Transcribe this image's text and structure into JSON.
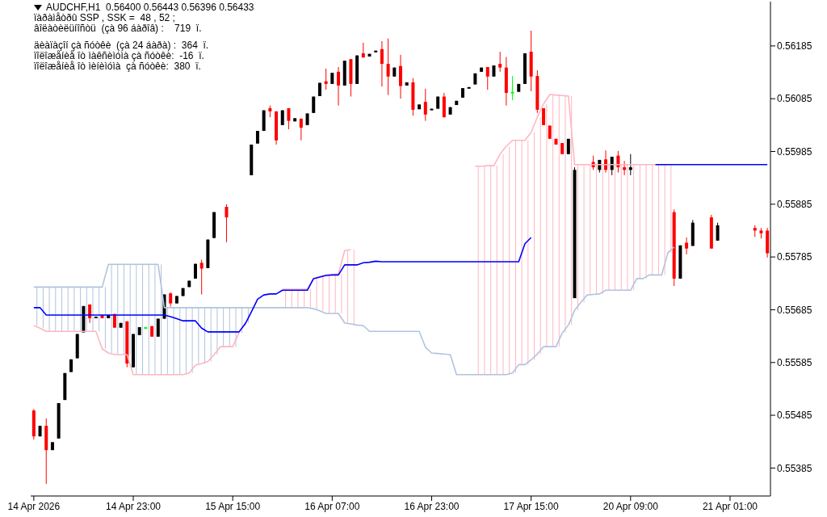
{
  "chart_data": {
    "type": "candlestick",
    "title": "AUDCHF,H1  0.56400 0.56443 0.56396 0.56433",
    "annotations": [
      "ïàðàìåòðû SSP , SSK =  48 , 52 ;",
      "âîëàòèëüíîñòü  (çà 96 áàðîâ) :    719  ï.",
      "äèàïàçîí çà ñóòêè  (çà 24 áàðà) :  364  ï.",
      "ïîëîæåíèå îò ìàêñèìóìà çà ñóòêè:  -16  ï.",
      "ïîëîæåíèå îò ìèíèìóìà  çà ñóòêè:  380  ï."
    ],
    "categories": [
      "14 Apr 2026",
      null,
      null,
      null,
      null,
      null,
      null,
      null,
      null,
      null,
      null,
      null,
      null,
      null,
      null,
      null,
      "14 Apr 23:00",
      null,
      null,
      null,
      null,
      null,
      null,
      null,
      null,
      null,
      null,
      null,
      null,
      null,
      null,
      null,
      "15 Apr 15:00",
      null,
      null,
      null,
      null,
      null,
      null,
      null,
      null,
      null,
      null,
      null,
      null,
      null,
      null,
      null,
      "16 Apr 07:00",
      null,
      null,
      null,
      null,
      null,
      null,
      null,
      null,
      null,
      null,
      null,
      null,
      null,
      null,
      null,
      "16 Apr 23:00",
      null,
      null,
      null,
      null,
      null,
      null,
      null,
      null,
      null,
      null,
      null,
      null,
      null,
      null,
      null,
      "17 Apr 15:00",
      null,
      null,
      null,
      null,
      null,
      null,
      null,
      null,
      null,
      null,
      null,
      null,
      null,
      null,
      null,
      "20 Apr 09:00",
      null,
      null,
      null,
      null,
      null,
      null,
      null,
      null,
      null,
      null,
      null,
      null,
      null,
      null,
      null,
      "21 Apr 01:00",
      null,
      null,
      null,
      null,
      null,
      null
    ],
    "ohlc": [
      [
        0.55494,
        0.55497,
        0.55439,
        0.55445
      ],
      [
        0.55445,
        0.55465,
        0.55445,
        0.55465
      ],
      [
        0.55465,
        0.55479,
        0.55355,
        0.55419
      ],
      [
        0.55419,
        0.55434,
        0.55419,
        0.55434
      ],
      [
        0.55441,
        0.55508,
        0.55441,
        0.55508
      ],
      [
        0.55514,
        0.55565,
        0.55514,
        0.55565
      ],
      [
        0.55567,
        0.55591,
        0.55567,
        0.55591
      ],
      [
        0.55593,
        0.55639,
        0.55593,
        0.55639
      ],
      [
        0.55642,
        0.55692,
        0.55642,
        0.55692
      ],
      [
        0.55695,
        0.55695,
        0.5566,
        0.55669
      ],
      [
        0.5567,
        0.55672,
        0.5567,
        0.55672
      ],
      [
        0.55675,
        0.55675,
        0.55669,
        0.55669
      ],
      [
        0.55669,
        0.55675,
        0.55669,
        0.55675
      ],
      [
        0.55677,
        0.55677,
        0.55651,
        0.55651
      ],
      [
        0.55651,
        0.5566,
        0.55651,
        0.5566
      ],
      [
        0.55663,
        0.55663,
        0.55576,
        0.55583
      ],
      [
        0.55576,
        0.55639,
        0.55576,
        0.55639
      ],
      [
        0.55637,
        0.55652,
        0.55637,
        0.55652
      ],
      [
        0.55652,
        0.55652,
        0.55652,
        0.55652
      ],
      [
        0.55654,
        0.55654,
        0.55634,
        0.55634
      ],
      [
        0.55634,
        0.55668,
        0.55634,
        0.55668
      ],
      [
        0.55668,
        0.55714,
        0.55668,
        0.55714
      ],
      [
        0.55716,
        0.55718,
        0.55691,
        0.55697
      ],
      [
        0.55697,
        0.55711,
        0.55697,
        0.55711
      ],
      [
        0.55711,
        0.55726,
        0.55711,
        0.55726
      ],
      [
        0.55728,
        0.5574,
        0.55728,
        0.5574
      ],
      [
        0.55744,
        0.55772,
        0.55744,
        0.55772
      ],
      [
        0.55774,
        0.5578,
        0.55714,
        0.55763
      ],
      [
        0.55764,
        0.55818,
        0.55764,
        0.55818
      ],
      [
        0.55821,
        0.5587,
        0.55821,
        0.5587
      ],
      null,
      [
        0.5588,
        0.55885,
        0.55813,
        0.5586
      ],
      null,
      null,
      null,
      [
        0.5594,
        0.55998,
        0.5594,
        0.55998
      ],
      [
        0.56,
        0.56024,
        0.56,
        0.56024
      ],
      [
        0.56024,
        0.56063,
        0.56024,
        0.56063
      ],
      [
        0.56067,
        0.56072,
        0.5605,
        0.56061
      ],
      [
        0.56061,
        0.56061,
        0.55998,
        0.56006
      ],
      [
        0.56035,
        0.56063,
        0.56035,
        0.56063
      ],
      [
        0.56067,
        0.56067,
        0.56027,
        0.56043
      ],
      [
        0.56042,
        0.56048,
        0.56042,
        0.56048
      ],
      [
        0.56047,
        0.56048,
        0.56006,
        0.5603
      ],
      [
        0.56035,
        0.56057,
        0.56035,
        0.56057
      ],
      [
        0.56058,
        0.56089,
        0.56058,
        0.56089
      ],
      [
        0.5609,
        0.56115,
        0.5609,
        0.56115
      ],
      [
        0.56118,
        0.56142,
        0.56102,
        0.56113
      ],
      [
        0.56113,
        0.56134,
        0.56113,
        0.56134
      ],
      [
        0.56136,
        0.56145,
        0.56072,
        0.5611
      ],
      [
        0.5611,
        0.56157,
        0.5611,
        0.56157
      ],
      [
        0.5616,
        0.5616,
        0.56089,
        0.56113
      ],
      [
        0.56113,
        0.56167,
        0.56113,
        0.56167
      ],
      [
        0.56171,
        0.56191,
        0.56163,
        0.56163
      ],
      [
        0.56165,
        0.5617,
        0.56165,
        0.5617
      ],
      [
        0.56173,
        0.56176,
        0.56173,
        0.56176
      ],
      [
        0.56179,
        0.56194,
        0.56108,
        0.56151
      ],
      [
        0.56151,
        0.56199,
        0.56092,
        0.56127
      ],
      [
        0.56127,
        0.56144,
        0.56127,
        0.56144
      ],
      [
        0.56147,
        0.56168,
        0.56085,
        0.56109
      ],
      [
        0.5611,
        0.56116,
        0.5611,
        0.56116
      ],
      [
        0.56116,
        0.56124,
        0.56053,
        0.56064
      ],
      [
        0.56065,
        0.56074,
        0.56065,
        0.56074
      ],
      [
        0.56079,
        0.56104,
        0.56043,
        0.56055
      ],
      [
        0.56065,
        0.56066,
        0.56065,
        0.56066
      ],
      [
        0.56066,
        0.56089,
        0.56066,
        0.56089
      ],
      [
        0.56089,
        0.56096,
        0.56049,
        0.5605
      ],
      [
        0.56055,
        0.56069,
        0.56055,
        0.56069
      ],
      [
        0.56073,
        0.56081,
        0.56073,
        0.56081
      ],
      [
        0.56087,
        0.56105,
        0.56087,
        0.56105
      ],
      [
        0.56106,
        0.56107,
        0.56106,
        0.56107
      ],
      [
        0.56112,
        0.56133,
        0.56112,
        0.56133
      ],
      [
        0.56136,
        0.56144,
        0.56136,
        0.56144
      ],
      [
        0.56145,
        0.56145,
        0.56102,
        0.56127
      ],
      [
        0.56127,
        0.56148,
        0.56127,
        0.56148
      ],
      [
        0.56151,
        0.56174,
        0.56136,
        0.56144
      ],
      [
        0.56144,
        0.56164,
        0.56072,
        0.56096
      ],
      [
        0.56098,
        0.56128,
        0.56082,
        0.56098
      ],
      [
        0.56098,
        0.56113,
        0.56098,
        0.56113
      ],
      [
        0.56113,
        0.56171,
        0.56113,
        0.56171
      ],
      [
        0.56174,
        0.56214,
        0.56099,
        0.56127
      ],
      [
        0.56128,
        0.56139,
        0.56058,
        0.56064
      ],
      [
        0.56067,
        0.56067,
        0.56035,
        0.56035
      ],
      [
        0.56034,
        0.56034,
        0.56009,
        0.56009
      ],
      [
        0.56009,
        0.56009,
        0.55998,
        0.55998
      ],
      [
        0.56001,
        0.56001,
        0.5598,
        0.5598
      ],
      [
        0.5598,
        0.56009,
        0.5598,
        0.56009
      ],
      [
        0.55707,
        0.55955,
        0.55707,
        0.5595
      ],
      null,
      null,
      [
        0.55965,
        0.55977,
        0.5595,
        0.55955
      ],
      [
        0.5595,
        0.55969,
        0.55945,
        0.55969
      ],
      [
        0.5597,
        0.55987,
        0.55945,
        0.5595
      ],
      [
        0.5595,
        0.55975,
        0.5594,
        0.55975
      ],
      [
        0.55977,
        0.55986,
        0.55945,
        0.55955
      ],
      [
        0.55955,
        0.55967,
        0.5594,
        0.5595
      ],
      [
        0.5595,
        0.5598,
        0.5594,
        0.55955
      ],
      null,
      null,
      null,
      null,
      null,
      null,
      [
        0.5587,
        0.55875,
        0.5573,
        0.55744
      ],
      [
        0.55744,
        0.55807,
        0.55744,
        0.55807
      ],
      [
        0.55812,
        0.55822,
        0.5579,
        0.55801
      ],
      [
        0.55806,
        0.55855,
        0.55806,
        0.5585
      ],
      null,
      null,
      [
        0.5586,
        0.55865,
        0.55801,
        0.55801
      ],
      [
        0.55816,
        0.5585,
        0.55816,
        0.55845
      ],
      null,
      null,
      null,
      null,
      null,
      [
        0.5584,
        0.55845,
        0.55823,
        0.55835
      ],
      [
        0.55835,
        0.5584,
        0.5582,
        0.5583
      ],
      [
        0.55835,
        0.5584,
        0.55784,
        0.55792
      ]
    ],
    "colors": [
      "#ff0000",
      "#000000",
      "#ff0000",
      "#000000",
      "#000000",
      "#000000",
      "#000000",
      "#000000",
      "#000000",
      "#ff0000",
      "#000000",
      "#ff0000",
      "#000000",
      "#ff0000",
      "#000000",
      "#ff0000",
      "#000000",
      "#000000",
      "#00ff00",
      "#ff0000",
      "#000000",
      "#000000",
      "#ff0000",
      "#000000",
      "#000000",
      "#000000",
      "#000000",
      "#ff0000",
      "#000000",
      "#000000",
      null,
      "#ff0000",
      null,
      null,
      null,
      "#000000",
      "#000000",
      "#000000",
      "#ff0000",
      "#ff0000",
      "#000000",
      "#ff0000",
      "#000000",
      "#ff0000",
      "#000000",
      "#000000",
      "#000000",
      "#ff0000",
      "#000000",
      "#ff0000",
      "#000000",
      "#ff0000",
      "#000000",
      "#ff0000",
      "#000000",
      "#000000",
      "#ff0000",
      "#ff0000",
      "#000000",
      "#ff0000",
      "#000000",
      "#ff0000",
      "#000000",
      "#ff0000",
      "#000000",
      "#000000",
      "#ff0000",
      "#000000",
      "#000000",
      "#000000",
      "#000000",
      "#000000",
      "#000000",
      "#ff0000",
      "#000000",
      "#ff0000",
      "#ff0000",
      "#00ff00",
      "#000000",
      "#000000",
      "#ff0000",
      "#ff0000",
      "#ff0000",
      "#ff0000",
      "#ff0000",
      "#ff0000",
      "#000000",
      "#000000",
      null,
      null,
      "#ff0000",
      "#000000",
      "#ff0000",
      "#000000",
      "#ff0000",
      "#ff0000",
      "#000000",
      null,
      null,
      null,
      null,
      null,
      null,
      "#ff0000",
      "#000000",
      "#ff0000",
      "#000000",
      null,
      null,
      "#ff0000",
      "#000000",
      null,
      null,
      null,
      null,
      null,
      "#ff0000",
      "#ff0000",
      "#ff0000"
    ],
    "series": [
      {
        "type": "line",
        "color": "#b0c4de",
        "values": [
          0.55728,
          0.55728,
          0.55728,
          0.55728,
          0.55728,
          0.55728,
          0.55728,
          0.55728,
          0.55728,
          0.55728,
          0.55728,
          0.55728,
          0.55771,
          0.55771,
          0.55771,
          0.55771,
          0.55771,
          0.55771,
          0.55771,
          0.55771,
          0.55771,
          0.55689,
          0.55689,
          0.55689,
          0.55689,
          0.55689,
          0.55689,
          0.55689,
          0.55689,
          0.55689,
          0.55689,
          0.55689,
          0.55689,
          0.55689,
          0.55689,
          0.55689,
          0.55689,
          0.55689,
          0.55689,
          0.55689,
          0.55689,
          0.55689,
          0.55689,
          0.55689,
          0.55689,
          0.55687,
          0.55683,
          0.55678,
          0.55678,
          0.55678,
          0.5566,
          0.55658,
          0.55656,
          0.55655,
          0.55644,
          0.55644,
          0.55644,
          0.55644,
          0.55644,
          0.55644,
          0.55644,
          0.55644,
          0.55644,
          0.55614,
          0.55603,
          0.55602,
          0.55601,
          0.556,
          0.55562,
          0.55562,
          0.55562,
          0.55562,
          0.55562,
          0.55562,
          0.55562,
          0.55562,
          0.55562,
          0.55565,
          0.55581,
          0.55581,
          0.5559,
          0.55601,
          0.55615,
          0.55615,
          0.55615,
          0.55641,
          0.55656,
          0.55684,
          0.55699,
          0.55713,
          0.55714,
          0.55715,
          0.55722,
          0.55722,
          0.55722,
          0.55722,
          0.55722,
          0.55744,
          0.55744,
          0.55751,
          0.55751,
          0.55751,
          0.55793,
          0.55804,
          null,
          null,
          null,
          null,
          null,
          null,
          null,
          null,
          null,
          null,
          null,
          null,
          null,
          null,
          null
        ]
      },
      {
        "type": "line",
        "color": "#ffb6c1",
        "values": [
          0.55655,
          0.5565,
          0.55644,
          0.55644,
          0.55644,
          0.55644,
          0.55644,
          0.55644,
          0.55644,
          0.55644,
          0.55644,
          0.55611,
          0.55603,
          0.556,
          0.556,
          0.556,
          0.55562,
          0.55562,
          0.55562,
          0.55562,
          0.55562,
          0.55562,
          0.55562,
          0.55562,
          0.55562,
          0.55565,
          0.5558,
          0.55583,
          0.55587,
          0.556,
          0.55615,
          0.55615,
          0.55615,
          0.55641,
          0.5566,
          null,
          null,
          null,
          null,
          null,
          0.55724,
          0.55724,
          0.55724,
          0.55724,
          0.55724,
          0.55744,
          0.55748,
          0.55751,
          0.55752,
          0.55753,
          0.55797,
          0.55799,
          null,
          null,
          null,
          null,
          null,
          null,
          null,
          null,
          null,
          null,
          null,
          null,
          null,
          null,
          null,
          null,
          null,
          null,
          null,
          0.55957,
          0.55957,
          0.55958,
          0.55958,
          0.5598,
          0.55995,
          0.56006,
          0.56006,
          0.56006,
          0.56021,
          0.5605,
          0.56075,
          0.56093,
          0.56092,
          0.56091,
          0.5609,
          0.5596,
          0.5596,
          0.5596,
          0.5596,
          0.5596,
          0.5596,
          0.5596,
          0.5596,
          0.5596,
          0.5596,
          0.5596,
          0.5596,
          0.5596,
          0.5596,
          0.5596,
          0.5596,
          null,
          null,
          null,
          null,
          null,
          null,
          null,
          null,
          null,
          null,
          null,
          null,
          null,
          null,
          null,
          null
        ]
      },
      {
        "type": "line",
        "color": "#0000ff",
        "values": [
          0.55689,
          0.55689,
          0.55675,
          0.55675,
          0.55675,
          0.55675,
          0.55675,
          0.55675,
          0.55675,
          0.55675,
          0.55675,
          0.55675,
          0.55675,
          0.55675,
          0.55675,
          0.55675,
          0.55675,
          0.55675,
          0.55675,
          0.55675,
          0.55675,
          0.55675,
          0.55672,
          0.55668,
          0.55664,
          0.55664,
          0.55664,
          0.5565,
          0.55643,
          0.55643,
          0.55643,
          0.55643,
          0.55643,
          0.55643,
          0.55658,
          0.55681,
          0.55705,
          0.55713,
          0.55715,
          0.55715,
          0.55722,
          0.55722,
          0.55722,
          0.55722,
          0.55722,
          0.55744,
          0.55747,
          0.5575,
          0.55751,
          0.55751,
          0.5577,
          0.5577,
          0.5577,
          0.55774,
          0.55775,
          0.55777,
          0.55776,
          0.55776,
          0.55776,
          0.55776,
          0.55776,
          0.55776,
          0.55776,
          0.55776,
          0.55776,
          0.55776,
          0.55776,
          0.55776,
          0.55776,
          0.55776,
          0.55776,
          0.55776,
          0.55776,
          0.55776,
          0.55776,
          0.55776,
          0.55776,
          0.55776,
          0.55776,
          0.5581,
          0.55822,
          null,
          null,
          null,
          null,
          null,
          null,
          null,
          null,
          null,
          null,
          null,
          null,
          null,
          null,
          null,
          null,
          null,
          null,
          null,
          0.5596,
          0.5596,
          0.5596,
          0.5596,
          0.5596,
          0.5596,
          0.5596,
          0.5596,
          0.5596,
          0.5596,
          0.5596,
          0.5596,
          0.5596,
          0.5596,
          0.5596,
          0.5596,
          0.5596,
          0.5596,
          0.5596
        ]
      }
    ],
    "ylim": [
      0.55332,
      0.56269
    ],
    "yticks": [
      0.55385,
      0.55485,
      0.55585,
      0.55685,
      0.55785,
      0.55885,
      0.55985,
      0.56085,
      0.56185
    ]
  }
}
